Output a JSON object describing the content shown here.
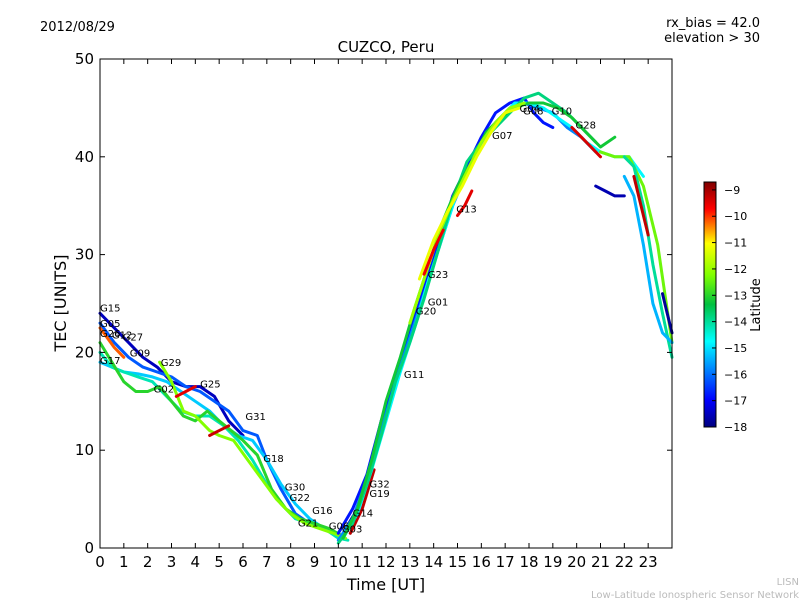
{
  "header": {
    "date": "2012/08/29",
    "rx_bias": "rx_bias = 42.0",
    "elevation": "elevation > 30"
  },
  "footer": {
    "org_short": "LISN",
    "org_long": "Low-Latitude Ionospheric Sensor Network"
  },
  "chart_data": {
    "type": "line",
    "title": "CUZCO, Peru",
    "xlabel": "Time [UT]",
    "ylabel": "TEC [UNITS]",
    "xlim": [
      0,
      24
    ],
    "ylim": [
      0,
      50
    ],
    "xticks": [
      "0",
      "1",
      "2",
      "3",
      "4",
      "5",
      "6",
      "7",
      "8",
      "9",
      "10",
      "11",
      "12",
      "13",
      "14",
      "15",
      "16",
      "17",
      "18",
      "19",
      "20",
      "21",
      "22",
      "23"
    ],
    "yticks": [
      "0",
      "10",
      "20",
      "30",
      "40",
      "50"
    ],
    "grid": false,
    "colorbar": {
      "label": "Latitude",
      "min": -18,
      "max": -8.7,
      "ticks": [
        "−18",
        "−17",
        "−16",
        "−15",
        "−14",
        "−13",
        "−12",
        "−11",
        "−10",
        "−9"
      ]
    },
    "satellite_labels": [
      {
        "name": "G15",
        "x": 0.0,
        "y": 24.2
      },
      {
        "name": "G05",
        "x": 0.0,
        "y": 22.6
      },
      {
        "name": "G26",
        "x": 0.0,
        "y": 21.6
      },
      {
        "name": "G12",
        "x": 0.5,
        "y": 21.4
      },
      {
        "name": "G27",
        "x": 0.95,
        "y": 21.2
      },
      {
        "name": "G09",
        "x": 1.25,
        "y": 19.6
      },
      {
        "name": "G17",
        "x": 0.0,
        "y": 18.8
      },
      {
        "name": "G29",
        "x": 2.55,
        "y": 18.6
      },
      {
        "name": "G02",
        "x": 2.25,
        "y": 15.9
      },
      {
        "name": "G25",
        "x": 4.2,
        "y": 16.4
      },
      {
        "name": "G31",
        "x": 6.1,
        "y": 13.1
      },
      {
        "name": "G18",
        "x": 6.85,
        "y": 8.8
      },
      {
        "name": "G30",
        "x": 7.75,
        "y": 5.9
      },
      {
        "name": "G22",
        "x": 7.95,
        "y": 4.8
      },
      {
        "name": "G16",
        "x": 8.9,
        "y": 3.5
      },
      {
        "name": "G21",
        "x": 8.3,
        "y": 2.2
      },
      {
        "name": "G06",
        "x": 9.6,
        "y": 1.9
      },
      {
        "name": "G03",
        "x": 10.15,
        "y": 1.6
      },
      {
        "name": "G14",
        "x": 10.6,
        "y": 3.2
      },
      {
        "name": "G32",
        "x": 11.3,
        "y": 6.2
      },
      {
        "name": "G19",
        "x": 11.3,
        "y": 5.2
      },
      {
        "name": "G11",
        "x": 12.75,
        "y": 17.4
      },
      {
        "name": "G20",
        "x": 13.25,
        "y": 23.9
      },
      {
        "name": "G01",
        "x": 13.75,
        "y": 24.8
      },
      {
        "name": "G23",
        "x": 13.75,
        "y": 27.6
      },
      {
        "name": "G13",
        "x": 14.95,
        "y": 34.3
      },
      {
        "name": "G07",
        "x": 16.45,
        "y": 41.8
      },
      {
        "name": "G04",
        "x": 17.6,
        "y": 44.6
      },
      {
        "name": "G08",
        "x": 17.75,
        "y": 44.3
      },
      {
        "name": "G10",
        "x": 18.95,
        "y": 44.3
      },
      {
        "name": "G28",
        "x": 19.95,
        "y": 42.9
      }
    ],
    "series": [
      {
        "lat": -17.5,
        "x": [
          0,
          0.6,
          1.2,
          1.8,
          2.4,
          3.0,
          3.6,
          4.2,
          4.8,
          5.4,
          6.0
        ],
        "y": [
          24,
          22.5,
          21,
          19.5,
          18.5,
          17,
          16.5,
          16.5,
          15.5,
          13,
          11.5
        ]
      },
      {
        "lat": -16.2,
        "x": [
          0,
          0.6,
          1.2,
          1.8,
          2.4,
          3.0,
          3.6,
          4.2,
          4.8,
          5.4,
          6.0,
          6.6,
          7.0,
          7.6,
          8.2,
          8.8,
          9.4
        ],
        "y": [
          23,
          21,
          19.5,
          18.5,
          18,
          17.5,
          16.5,
          16,
          15,
          14,
          12,
          11.5,
          9,
          6,
          3.5,
          2.5,
          2
        ]
      },
      {
        "lat": -15.2,
        "x": [
          0,
          0.5,
          1.0,
          1.6,
          2.2,
          2.8,
          3.4,
          4.0,
          4.6,
          5.2,
          5.8,
          6.4,
          7.0,
          7.6,
          8.2,
          8.8,
          9.4,
          10.0
        ],
        "y": [
          19,
          18.5,
          18,
          17.8,
          17.5,
          17,
          16,
          15,
          14,
          12.5,
          11.5,
          11,
          9,
          6.5,
          4.5,
          3,
          2,
          1.5
        ]
      },
      {
        "lat": -14.2,
        "x": [
          0,
          0.5,
          1.0,
          1.6,
          2.2,
          2.8,
          3.4,
          4.0,
          4.6,
          5.2,
          5.8,
          6.4,
          7.0,
          7.6,
          8.2,
          8.8,
          9.4,
          10.0,
          10.4
        ],
        "y": [
          20,
          18.5,
          18,
          17.5,
          17,
          15.5,
          14,
          13.5,
          13.5,
          12.5,
          11,
          9,
          6.5,
          4.5,
          3,
          2.5,
          2,
          1,
          0.8
        ]
      },
      {
        "lat": -13.0,
        "x": [
          0,
          0.5,
          1.0,
          1.5,
          2.0,
          2.5,
          3.0,
          3.5,
          4.0,
          4.5,
          5.0,
          5.5,
          6.0,
          6.6,
          7.2,
          7.8,
          8.4,
          9.0,
          9.6,
          10.2
        ],
        "y": [
          21,
          19,
          17,
          16,
          16,
          16.5,
          15,
          13.5,
          13,
          14,
          13,
          12,
          11,
          9.5,
          6,
          4,
          3,
          2.5,
          2,
          1.2
        ]
      },
      {
        "lat": -12.2,
        "x": [
          2.5,
          3.0,
          3.5,
          4.0,
          4.6,
          5.0,
          5.6,
          6.2,
          6.8,
          7.4,
          8.0,
          8.6,
          9.2,
          9.8,
          10.3
        ],
        "y": [
          19,
          17,
          14,
          13.5,
          12,
          11.5,
          11,
          9,
          7,
          5,
          3.5,
          2.5,
          2,
          1.5,
          1
        ]
      },
      {
        "lat": -10.2,
        "x": [
          0,
          0.3,
          0.6,
          1.0
        ],
        "y": [
          22.5,
          21.5,
          20.5,
          19.5
        ]
      },
      {
        "lat": -9.5,
        "x": [
          3.2,
          3.6,
          4.0
        ],
        "y": [
          15.5,
          16,
          16.5
        ]
      },
      {
        "lat": -9.3,
        "x": [
          4.6,
          5.0,
          5.4
        ],
        "y": [
          11.5,
          12,
          12.5
        ]
      },
      {
        "lat": -9.2,
        "x": [
          10.5,
          11.0,
          11.5
        ],
        "y": [
          1.5,
          4,
          8
        ]
      },
      {
        "lat": -17.8,
        "x": [
          10.2,
          10.8,
          11.4,
          12.0
        ],
        "y": [
          1.5,
          4,
          9,
          14.5
        ]
      },
      {
        "lat": -16.8,
        "x": [
          10.0,
          10.6,
          11.2,
          11.8,
          12.4,
          13.0,
          13.6,
          14.2,
          14.8,
          15.4,
          16.0,
          16.6,
          17.2,
          17.8,
          18.2,
          18.6,
          19.0
        ],
        "y": [
          1.5,
          4,
          7.5,
          13,
          17.5,
          22,
          26.5,
          31,
          36,
          39,
          42,
          44.5,
          45.5,
          46,
          44.5,
          43.5,
          43
        ]
      },
      {
        "lat": -15.8,
        "x": [
          10.0,
          10.6,
          11.2,
          11.8,
          12.4,
          13.0,
          13.6,
          14.2,
          14.8,
          15.4,
          16.0,
          16.6,
          17.2,
          17.8,
          18.4,
          19.0,
          19.6,
          20.2,
          20.8
        ],
        "y": [
          0.8,
          3,
          7,
          12,
          17,
          21.5,
          26,
          30.5,
          35,
          38.5,
          41,
          43.5,
          45,
          45.5,
          45,
          44.5,
          43,
          42,
          40.5
        ]
      },
      {
        "lat": -14.8,
        "x": [
          10.2,
          10.8,
          11.4,
          12.0,
          12.6,
          13.2,
          13.8,
          14.4,
          15.0,
          15.6,
          16.2,
          16.8,
          17.4,
          18.0,
          18.6,
          19.2,
          19.8,
          20.4,
          21.0,
          21.6,
          22.2,
          22.8
        ],
        "y": [
          1,
          3.5,
          8,
          13,
          18,
          22.5,
          27.5,
          32,
          36.5,
          39.5,
          42,
          44,
          45.5,
          45.5,
          45,
          44,
          43,
          41.5,
          40.5,
          40,
          40,
          38
        ]
      },
      {
        "lat": -13.8,
        "x": [
          10.0,
          10.6,
          11.2,
          11.8,
          12.4,
          13.0,
          13.6,
          14.2,
          14.8,
          15.4,
          16.0,
          16.6,
          17.2,
          17.8,
          18.4,
          19.0,
          19.6,
          20.2,
          20.8
        ],
        "y": [
          0.5,
          2.5,
          6.5,
          11.5,
          17,
          21,
          25.5,
          30.5,
          35.5,
          39.5,
          41.5,
          43,
          44.5,
          46,
          46.5,
          45.5,
          44.5,
          43,
          41.5
        ]
      },
      {
        "lat": -13.2,
        "x": [
          10.2,
          10.8,
          11.4,
          12.0,
          12.6,
          13.2,
          13.8,
          14.4,
          15.0,
          15.6,
          16.2,
          16.8,
          17.4,
          18.0,
          18.6,
          19.2,
          19.8,
          20.4,
          21.0,
          21.6
        ],
        "y": [
          1,
          4,
          9,
          15,
          19.5,
          24.5,
          29,
          33.5,
          37,
          39.5,
          42.5,
          44,
          45,
          45.5,
          45.5,
          45,
          44,
          42.5,
          41,
          42
        ]
      },
      {
        "lat": -12.0,
        "x": [
          13.0,
          13.6,
          14.2,
          14.8,
          15.4,
          16.0,
          16.6,
          17.2,
          17.8
        ],
        "y": [
          23,
          27.5,
          32,
          35.5,
          38.5,
          41.5,
          43.5,
          45,
          45.5
        ]
      },
      {
        "lat": -11.2,
        "x": [
          13.4,
          14.0,
          14.6,
          15.2,
          15.8,
          16.4,
          17.0,
          17.6
        ],
        "y": [
          27.5,
          31.5,
          34.5,
          37,
          40,
          42.5,
          44.5,
          45
        ]
      },
      {
        "lat": -9.6,
        "x": [
          13.6,
          14.0,
          14.4
        ],
        "y": [
          28,
          30.5,
          32.5
        ]
      },
      {
        "lat": -9.5,
        "x": [
          15.0,
          15.3,
          15.6
        ],
        "y": [
          34,
          35,
          36.5
        ]
      },
      {
        "lat": -9.4,
        "x": [
          19.8,
          20.2,
          20.6,
          21.0
        ],
        "y": [
          43,
          42,
          41,
          40
        ]
      },
      {
        "lat": -12.4,
        "x": [
          21.0,
          21.6,
          22.2,
          22.8,
          23.4,
          24.0
        ],
        "y": [
          40.5,
          40,
          40,
          37,
          31,
          21
        ]
      },
      {
        "lat": -14.0,
        "x": [
          22.0,
          22.4,
          22.8,
          23.2,
          23.6,
          24.0
        ],
        "y": [
          40,
          39,
          35,
          29,
          24,
          19.5
        ]
      },
      {
        "lat": -15.4,
        "x": [
          22.0,
          22.4,
          22.8,
          23.2,
          23.6,
          24.0
        ],
        "y": [
          38,
          36,
          31,
          25,
          22,
          21
        ]
      },
      {
        "lat": -17.6,
        "x": [
          20.8,
          21.2,
          21.6,
          22.0
        ],
        "y": [
          37,
          36.5,
          36,
          36
        ]
      },
      {
        "lat": -17.8,
        "x": [
          23.6,
          23.8,
          24.0
        ],
        "y": [
          26,
          24,
          22
        ]
      },
      {
        "lat": -9.2,
        "x": [
          22.4,
          22.7,
          23.0
        ],
        "y": [
          38,
          35,
          32
        ]
      }
    ]
  }
}
